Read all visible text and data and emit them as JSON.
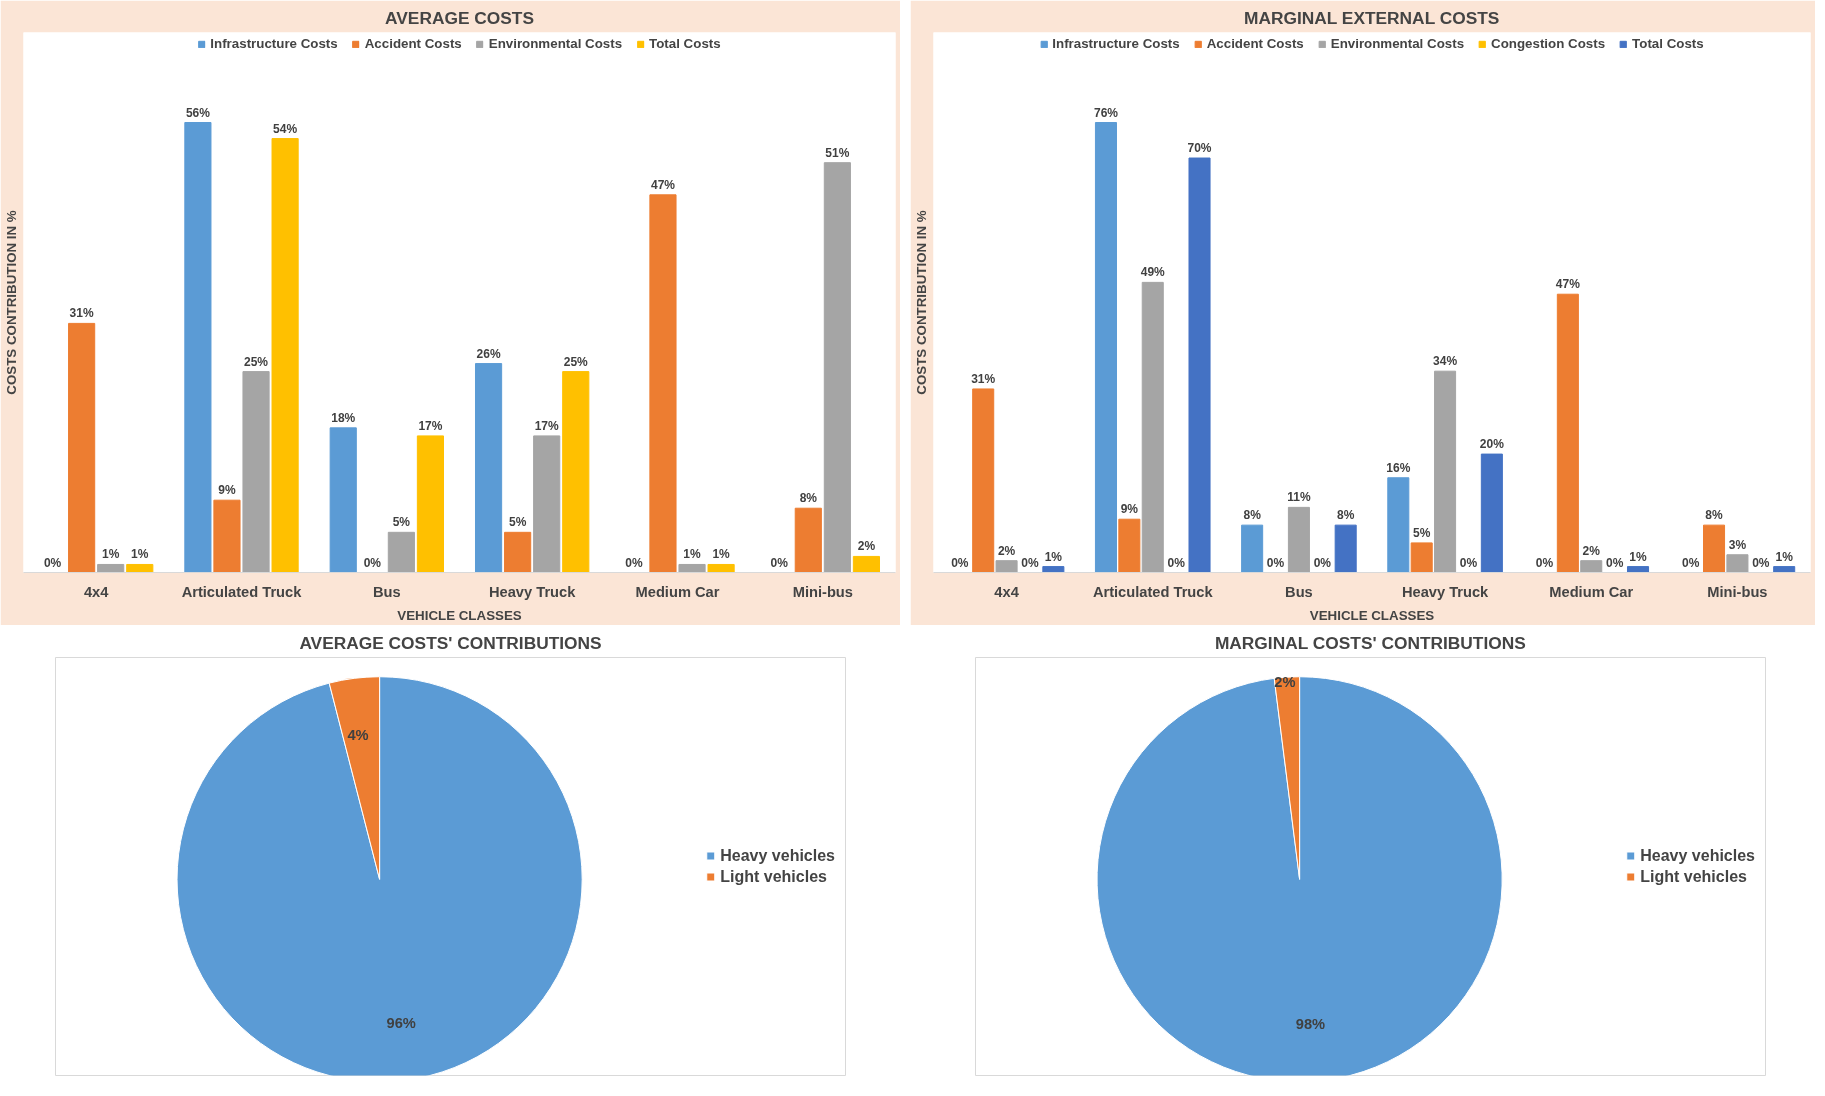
{
  "chart_data": [
    {
      "type": "bar",
      "title": "AVERAGE COSTS",
      "xlabel": "VEHICLE CLASSES",
      "ylabel": "COSTS CONTRIBUTION IN %",
      "categories": [
        "4x4",
        "Articulated Truck",
        "Bus",
        "Heavy Truck",
        "Medium Car",
        "Mini-bus"
      ],
      "legend": "top",
      "series": [
        {
          "name": "Infrastructure Costs",
          "color": "#5b9bd5",
          "values": [
            0,
            56,
            18,
            26,
            0,
            0
          ],
          "value_labels": [
            "0%",
            "56%",
            "18%",
            "26%",
            "0%",
            "0%"
          ]
        },
        {
          "name": "Accident Costs",
          "color": "#ed7d31",
          "values": [
            31,
            9,
            0,
            5,
            47,
            8
          ],
          "value_labels": [
            "31%",
            "9%",
            "0%",
            "5%",
            "47%",
            "8%"
          ]
        },
        {
          "name": "Environmental Costs",
          "color": "#a5a5a5",
          "values": [
            1,
            25,
            5,
            17,
            1,
            51
          ],
          "value_labels": [
            "1%",
            "25%",
            "5%",
            "17%",
            "1%",
            "51%"
          ]
        },
        {
          "name": "Total Costs",
          "color": "#ffc000",
          "values": [
            1,
            54,
            17,
            25,
            1,
            2
          ],
          "value_labels": [
            "1%",
            "54%",
            "17%",
            "25%",
            "1%",
            "2%"
          ]
        }
      ]
    },
    {
      "type": "bar",
      "title": "MARGINAL EXTERNAL COSTS",
      "xlabel": "VEHICLE CLASSES",
      "ylabel": "COSTS CONTRIBUTION IN %",
      "categories": [
        "4x4",
        "Articulated Truck",
        "Bus",
        "Heavy Truck",
        "Medium Car",
        "Mini-bus"
      ],
      "legend": "top",
      "series": [
        {
          "name": "Infrastructure Costs",
          "color": "#5b9bd5",
          "values": [
            0,
            76,
            8,
            16,
            0,
            0
          ],
          "value_labels": [
            "0%",
            "76%",
            "8%",
            "16%",
            "0%",
            "0%"
          ]
        },
        {
          "name": "Accident Costs",
          "color": "#ed7d31",
          "values": [
            31,
            9,
            0,
            5,
            47,
            8
          ],
          "value_labels": [
            "31%",
            "9%",
            "0%",
            "5%",
            "47%",
            "8%"
          ]
        },
        {
          "name": "Environmental Costs",
          "color": "#a5a5a5",
          "values": [
            2,
            49,
            11,
            34,
            2,
            3
          ],
          "value_labels": [
            "2%",
            "49%",
            "11%",
            "34%",
            "2%",
            "3%"
          ]
        },
        {
          "name": "Congestion Costs",
          "color": "#ffc000",
          "values": [
            0,
            0,
            0,
            0,
            0,
            0
          ],
          "value_labels": [
            "0%",
            "0%",
            "0%",
            "0%",
            "0%",
            "0%"
          ]
        },
        {
          "name": "Total Costs",
          "color": "#4472c4",
          "values": [
            1,
            70,
            8,
            20,
            1,
            1
          ],
          "value_labels": [
            "1%",
            "70%",
            "8%",
            "20%",
            "1%",
            "1%"
          ]
        }
      ]
    },
    {
      "type": "pie",
      "title": "AVERAGE COSTS' CONTRIBUTIONS",
      "categories": [
        "Heavy vehicles",
        "Light vehicles"
      ],
      "values": [
        96,
        4
      ],
      "colors": [
        "#5b9bd5",
        "#ed7d31"
      ],
      "legend": "right",
      "value_labels": [
        "96%",
        "4%"
      ]
    },
    {
      "type": "pie",
      "title": "MARGINAL COSTS' CONTRIBUTIONS",
      "categories": [
        "Heavy vehicles",
        "Light vehicles"
      ],
      "values": [
        98,
        2
      ],
      "colors": [
        "#5b9bd5",
        "#ed7d31"
      ],
      "legend": "right",
      "value_labels": [
        "98%",
        "2%"
      ]
    }
  ]
}
